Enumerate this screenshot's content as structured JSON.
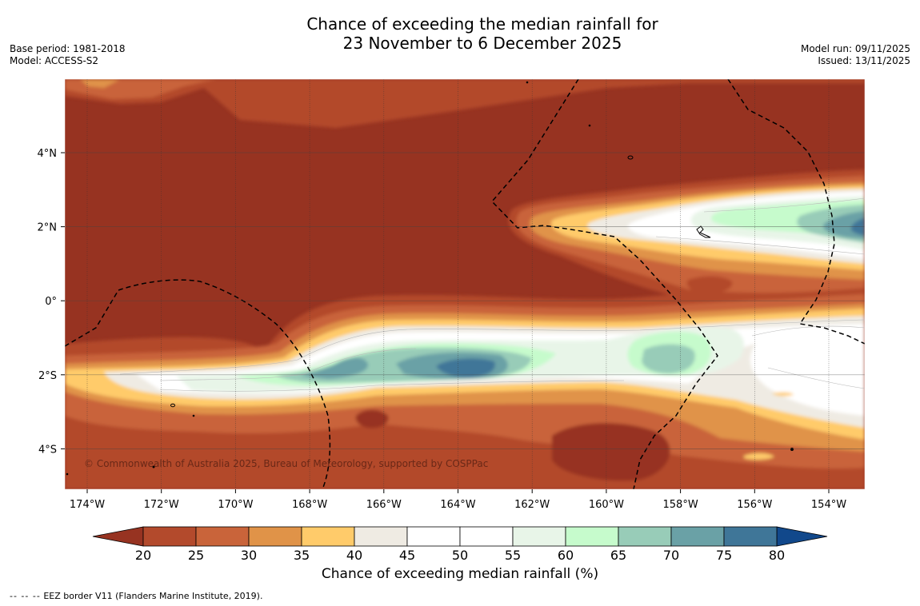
{
  "title": {
    "line1": "Chance of exceeding the median rainfall for",
    "line2": "23 November to 6 December 2025"
  },
  "meta_left": {
    "base_period": "Base period: 1981-2018",
    "model": "Model: ACCESS-S2"
  },
  "meta_right": {
    "model_run": "Model run: 09/11/2025",
    "issued": "Issued: 13/11/2025"
  },
  "map": {
    "lon_labels": [
      "174°W",
      "172°W",
      "170°W",
      "168°W",
      "166°W",
      "164°W",
      "162°W",
      "160°W",
      "158°W",
      "156°W",
      "154°W"
    ],
    "lat_labels": [
      "4°N",
      "2°N",
      "0°",
      "2°S",
      "4°S"
    ],
    "copyright": "© Commonwealth of Australia 2025, Bureau of Meteorology, supported by COSPPac"
  },
  "colorbar": {
    "ticks": [
      "20",
      "25",
      "30",
      "35",
      "40",
      "45",
      "50",
      "55",
      "60",
      "65",
      "70",
      "75",
      "80"
    ],
    "colors": [
      "#b34a2c",
      "#c9643a",
      "#e09348",
      "#ffcb6a",
      "#efebe3",
      "#ffffff",
      "#ffffff",
      "#e8f5e8",
      "#c6fbcc",
      "#98ccb8",
      "#6aa1a6",
      "#3f7698"
    ],
    "under_color": "#973321",
    "over_color": "#11488b",
    "label": "Chance of exceeding median rainfall (%)"
  },
  "footnote": {
    "dash": "--  --  --",
    "text": "EEZ border V11 (Flanders Marine Institute, 2019)."
  }
}
